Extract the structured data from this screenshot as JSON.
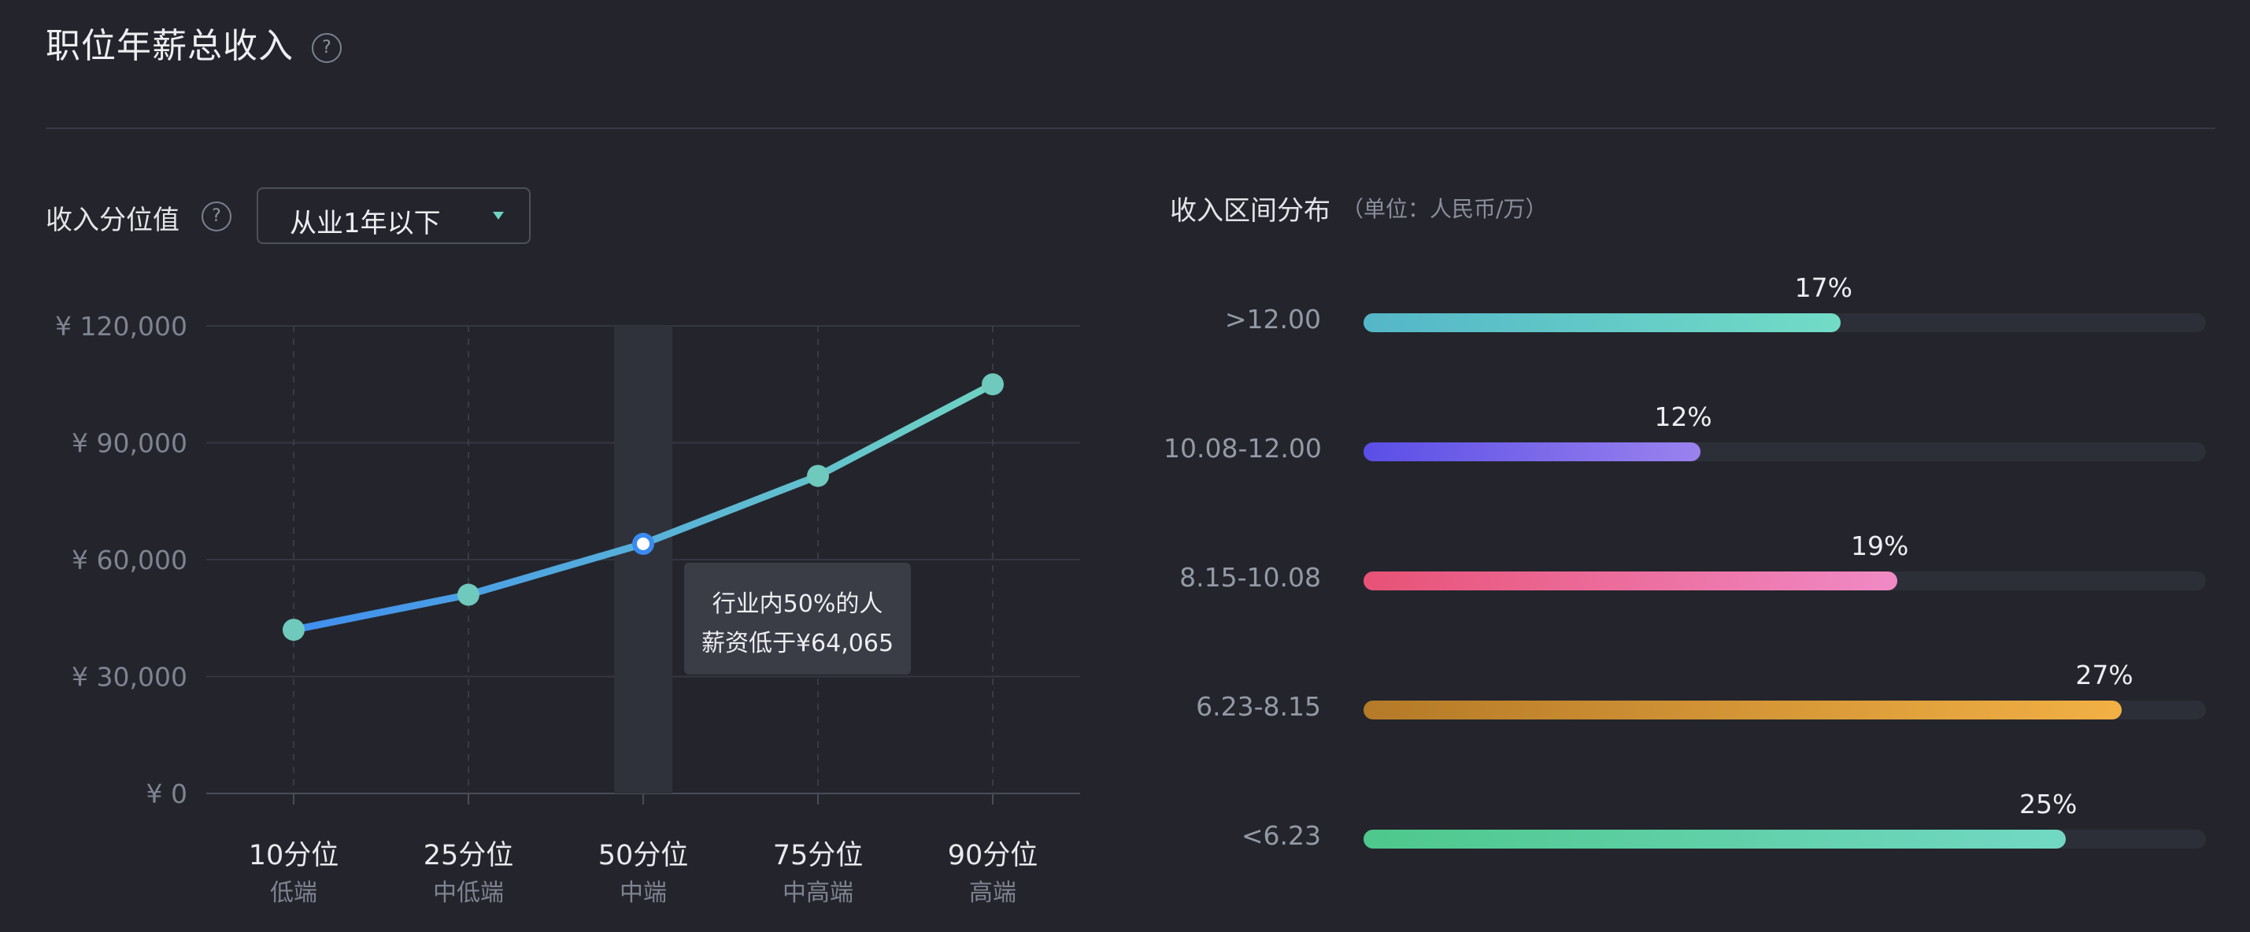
{
  "header": {
    "title": "职位年薪总收入",
    "help_glyph": "?"
  },
  "percentile_section": {
    "label": "收入分位值",
    "help_glyph": "?",
    "dropdown": {
      "selected": "从业1年以下"
    }
  },
  "distribution_section": {
    "title": "收入区间分布",
    "unit": "（单位：人民币/万）"
  },
  "chart_data": [
    {
      "type": "line",
      "categories": [
        "10分位",
        "25分位",
        "50分位",
        "75分位",
        "90分位"
      ],
      "sublabels": [
        "低端",
        "中低端",
        "中端",
        "中高端",
        "高端"
      ],
      "values": [
        42000,
        51000,
        64065,
        81500,
        105000
      ],
      "ylim": [
        0,
        120000
      ],
      "yticks": [
        "¥ 0",
        "¥ 30,000",
        "¥ 60,000",
        "¥ 90,000",
        "¥ 120,000"
      ],
      "ytick_values": [
        0,
        30000,
        60000,
        90000,
        120000
      ],
      "highlight_index": 2,
      "tooltip": {
        "line1": "行业内50%的人",
        "line2": "薪资低于¥64,065"
      },
      "grid": true,
      "colors": {
        "start": "#3f8ef0",
        "end": "#6fd3c2",
        "point": "#6fc9bd",
        "highlight_fill": "#ffffff",
        "highlight_ring": "#3a8af0"
      }
    },
    {
      "type": "bar",
      "orientation": "horizontal",
      "categories": [
        ">12.00",
        "10.08-12.00",
        "8.15-10.08",
        "6.23-8.15",
        "<6.23"
      ],
      "values": [
        17,
        12,
        19,
        27,
        25
      ],
      "value_labels": [
        "17%",
        "12%",
        "19%",
        "27%",
        "25%"
      ],
      "xlim": [
        0,
        30
      ],
      "gradients": [
        [
          "#54b6c8",
          "#72dcc6"
        ],
        [
          "#5a4ee6",
          "#9a82ee"
        ],
        [
          "#e85276",
          "#f08ac6"
        ],
        [
          "#b57a28",
          "#f2b044"
        ],
        [
          "#4ec88c",
          "#72d8c4"
        ]
      ]
    }
  ]
}
